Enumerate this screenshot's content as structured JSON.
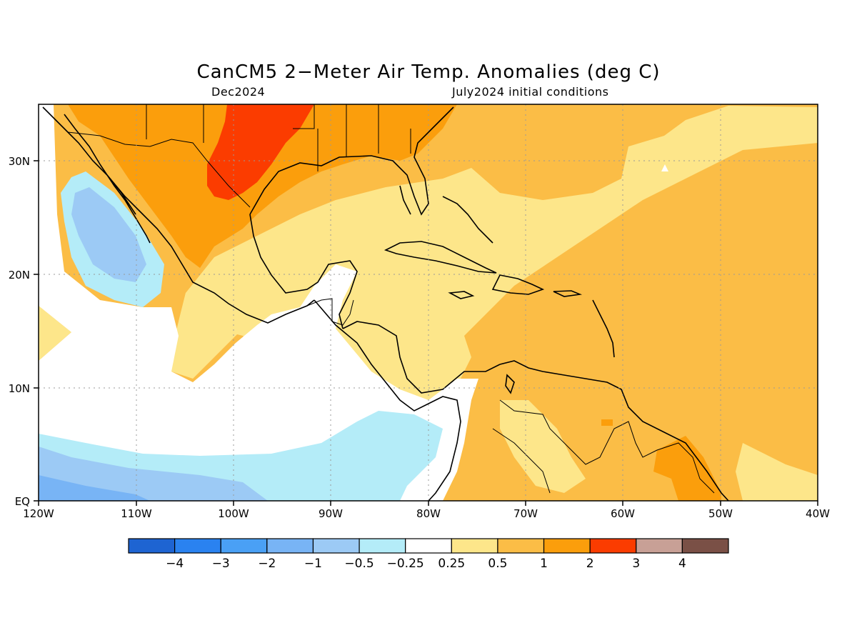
{
  "title": "CanCM5 2−Meter Air Temp. Anomalies (deg C)",
  "valid_label": "Dec2024",
  "init_label": "July2024 initial conditions",
  "lon_ticks": [
    "120W",
    "110W",
    "100W",
    "90W",
    "80W",
    "70W",
    "60W",
    "50W",
    "40W"
  ],
  "lat_ticks": [
    "30N",
    "20N",
    "10N",
    "EQ"
  ],
  "colorbar": {
    "colors": [
      "#1e64d2",
      "#2a82f0",
      "#4aa0f5",
      "#78b4f5",
      "#9ccaf5",
      "#b4ecf8",
      "#ffffff",
      "#fde68a",
      "#fbbd46",
      "#fb9e0c",
      "#fb3c00",
      "#c8a096",
      "#7a5046"
    ],
    "labels": [
      "−4",
      "−3",
      "−2",
      "−1",
      "−0.5",
      "−0.25",
      "0.25",
      "0.5",
      "1",
      "2",
      "3",
      "4"
    ]
  },
  "map": {
    "extent": {
      "lon": [
        -120,
        -40
      ],
      "lat": [
        0,
        35
      ]
    },
    "grid": "dotted",
    "colors": {
      "land_outline": "#000000",
      "background": "#ffffff",
      "pale_yellow": "#fde68a",
      "light_orange": "#fbbd46",
      "orange": "#fb9e0c",
      "red": "#fb3c00",
      "cyan": "#b4ecf8",
      "light_blue": "#9ccaf5",
      "blue": "#78b4f5"
    }
  }
}
